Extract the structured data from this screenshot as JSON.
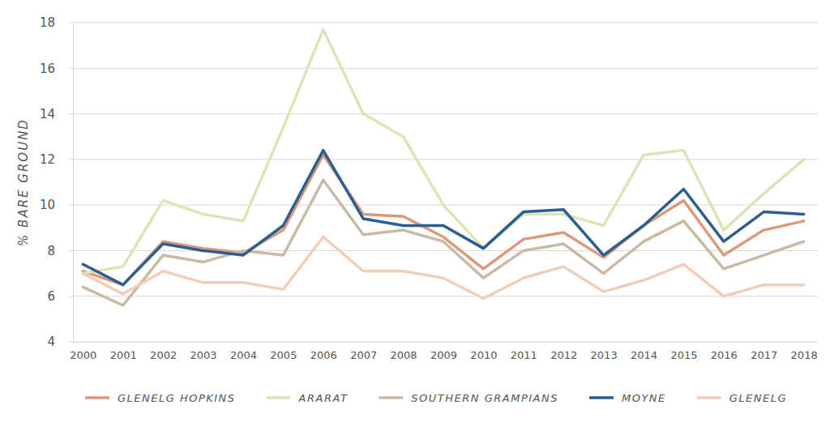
{
  "chart_data": {
    "type": "line",
    "y_label": "% BARE GROUND",
    "categories": [
      "2000",
      "2001",
      "2002",
      "2003",
      "2004",
      "2005",
      "2006",
      "2007",
      "2008",
      "2009",
      "2010",
      "2011",
      "2012",
      "2013",
      "2014",
      "2015",
      "2016",
      "2017",
      "2018"
    ],
    "series": [
      {
        "name": "GLENELG HOPKINS",
        "color": "#dc9a7c",
        "values": [
          7.1,
          6.5,
          8.4,
          8.1,
          7.9,
          8.9,
          12.2,
          9.6,
          9.5,
          8.6,
          7.2,
          8.5,
          8.8,
          7.7,
          9.1,
          10.2,
          7.8,
          8.9,
          9.3
        ]
      },
      {
        "name": "ARARAT",
        "color": "#dde4b8",
        "values": [
          7.0,
          7.3,
          10.2,
          9.6,
          9.3,
          13.4,
          17.7,
          14.0,
          13.0,
          10.0,
          8.1,
          9.6,
          9.6,
          9.1,
          12.2,
          12.4,
          8.9,
          10.5,
          12.0
        ]
      },
      {
        "name": "SOUTHERN GRAMPIANS",
        "color": "#c9bba3",
        "values": [
          6.4,
          5.6,
          7.8,
          7.5,
          8.0,
          7.8,
          11.1,
          8.7,
          8.9,
          8.4,
          6.8,
          8.0,
          8.3,
          7.0,
          8.4,
          9.3,
          7.2,
          7.8,
          8.4
        ]
      },
      {
        "name": "MOYNE",
        "color": "#2b5f91",
        "values": [
          7.4,
          6.5,
          8.3,
          8.0,
          7.8,
          9.1,
          12.4,
          9.4,
          9.1,
          9.1,
          8.1,
          9.7,
          9.8,
          7.8,
          9.1,
          10.7,
          8.4,
          9.7,
          9.6
        ]
      },
      {
        "name": "GLENELG",
        "color": "#f2cdb8",
        "values": [
          7.0,
          6.1,
          7.1,
          6.6,
          6.6,
          6.3,
          8.6,
          7.1,
          7.1,
          6.8,
          5.9,
          6.8,
          7.3,
          6.2,
          6.7,
          7.4,
          6.0,
          6.5,
          6.5
        ]
      }
    ],
    "ylim": [
      4,
      18
    ],
    "yticks": [
      4,
      6,
      8,
      10,
      12,
      14,
      16,
      18
    ],
    "grid": true,
    "legend": "bottom"
  }
}
